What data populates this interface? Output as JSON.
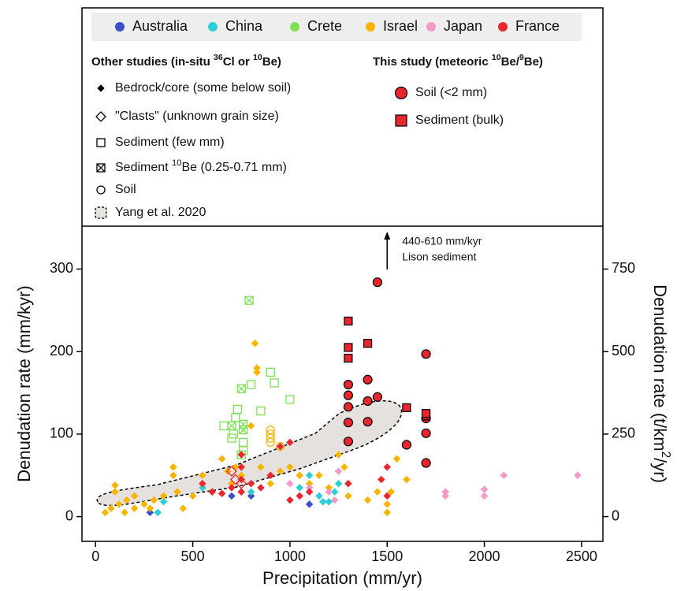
{
  "chart_data": {
    "type": "scatter",
    "xlabel": "Precipitation (mm/yr)",
    "ylabel": "Denudation rate (mm/kyr)",
    "y2label": [
      {
        "text": "Denudation rate (t/km"
      },
      {
        "text": "2",
        "sup": true
      },
      {
        "text": "/yr)"
      }
    ],
    "xlim": [
      -70,
      2610
    ],
    "xticks": [
      0,
      500,
      1000,
      1500,
      2000,
      2500
    ],
    "ylim": [
      -30,
      352
    ],
    "yticks": [
      0,
      100,
      200,
      300
    ],
    "y2lim": [
      -75,
      880
    ],
    "y2ticks": [
      0,
      250,
      500,
      750
    ],
    "annotation": {
      "x": 1500,
      "lines": [
        "440-610 mm/kyr",
        "Lison sediment"
      ]
    },
    "other_studies_title": [
      {
        "text": "Other studies (in-situ "
      },
      {
        "text": "36",
        "sup": true
      },
      {
        "text": "Cl or "
      },
      {
        "text": "10",
        "sup": true
      },
      {
        "text": "Be)"
      }
    ],
    "this_study_title": [
      {
        "text": "This study (meteoric "
      },
      {
        "text": "10",
        "sup": true
      },
      {
        "text": "Be/"
      },
      {
        "text": "9",
        "sup": true
      },
      {
        "text": "Be)"
      }
    ],
    "legend_items": [
      {
        "marker": "diamond",
        "label": [
          {
            "text": "Bedrock/core (some below soil)"
          }
        ]
      },
      {
        "marker": "diamond-open",
        "label": [
          {
            "text": "\"Clasts\" (unknown grain size)"
          }
        ]
      },
      {
        "marker": "square-open",
        "label": [
          {
            "text": "Sediment (few mm)"
          }
        ]
      },
      {
        "marker": "square-crossed",
        "label": [
          {
            "text": "Sediment "
          },
          {
            "text": "10",
            "sup": true
          },
          {
            "text": "Be (0.25-0.71 mm)"
          }
        ]
      },
      {
        "marker": "circle-open",
        "label": [
          {
            "text": "Soil"
          }
        ]
      },
      {
        "marker": "region",
        "label": [
          {
            "text": "Yang et al. 2020"
          }
        ]
      }
    ],
    "this_study_items": [
      {
        "marker": "circle-big",
        "color": "#e8262e",
        "label": "Soil (<2 mm)"
      },
      {
        "marker": "square-big",
        "color": "#e8262e",
        "label": "Sediment (bulk)"
      }
    ],
    "series": [
      {
        "name": "Australia",
        "color": "#3b4fcb",
        "groups": [
          {
            "marker": "diamond",
            "x": [
              280,
              700,
              750,
              800,
              1100
            ],
            "y": [
              5,
              25,
              30,
              25,
              15
            ]
          }
        ]
      },
      {
        "name": "China",
        "color": "#2ccfd8",
        "groups": [
          {
            "marker": "diamond",
            "x": [
              320,
              350,
              550,
              800,
              1050,
              1100,
              1150,
              1170,
              1200,
              1230,
              1250
            ],
            "y": [
              5,
              18,
              35,
              30,
              35,
              50,
              25,
              18,
              18,
              30,
              40
            ]
          }
        ]
      },
      {
        "name": "Crete",
        "color": "#7de052",
        "groups": [
          {
            "marker": "square-open",
            "x": [
              660,
              700,
              710,
              720,
              730,
              750,
              760,
              760,
              800,
              850,
              900,
              920,
              1000
            ],
            "y": [
              110,
              95,
              100,
              120,
              130,
              75,
              80,
              90,
              160,
              128,
              175,
              162,
              142
            ]
          },
          {
            "marker": "square-crossed",
            "x": [
              700,
              750,
              760,
              760,
              790
            ],
            "y": [
              110,
              155,
              105,
              112,
              262
            ]
          }
        ]
      },
      {
        "name": "Israel",
        "color": "#f7b500",
        "groups": [
          {
            "marker": "diamond",
            "x": [
              50,
              80,
              100,
              100,
              120,
              150,
              160,
              200,
              200,
              250,
              280,
              300,
              350,
              400,
              400,
              420,
              450,
              500,
              550,
              600,
              650,
              680,
              700,
              720,
              750,
              800,
              820,
              830,
              830,
              850,
              900,
              950,
              1000,
              1050,
              1100,
              1150,
              1200,
              1250,
              1280,
              1300,
              1400,
              1450,
              1500,
              1500,
              1520,
              1550,
              1600
            ],
            "y": [
              5,
              10,
              30,
              38,
              15,
              5,
              20,
              10,
              25,
              15,
              10,
              20,
              25,
              60,
              50,
              30,
              10,
              25,
              50,
              30,
              70,
              55,
              40,
              60,
              50,
              110,
              210,
              180,
              175,
              60,
              40,
              55,
              60,
              50,
              40,
              50,
              35,
              75,
              60,
              25,
              20,
              30,
              5,
              15,
              30,
              70,
              45
            ]
          },
          {
            "marker": "circle-open",
            "x": [
              900,
              900,
              900,
              900,
              950
            ],
            "y": [
              90,
              95,
              100,
              105,
              85
            ]
          }
        ]
      },
      {
        "name": "Japan",
        "color": "#f29ac8",
        "groups": [
          {
            "marker": "diamond",
            "x": [
              1000,
              1100,
              1200,
              1230,
              1250,
              1800,
              1800,
              2000,
              2000,
              2100,
              2480
            ],
            "y": [
              40,
              35,
              30,
              20,
              55,
              25,
              30,
              25,
              33,
              50,
              50
            ]
          }
        ]
      },
      {
        "name": "France",
        "color": "#e8262e",
        "groups": [
          {
            "marker": "diamond",
            "x": [
              550,
              600,
              650,
              700,
              750,
              750,
              750,
              750,
              800,
              850,
              900,
              950,
              1000,
              1000,
              1050,
              1100,
              1300,
              1470,
              1500,
              1500
            ],
            "y": [
              40,
              30,
              28,
              35,
              75,
              60,
              45,
              30,
              40,
              35,
              50,
              85,
              90,
              20,
              25,
              30,
              40,
              45,
              25,
              60
            ]
          },
          {
            "marker": "diamond-open",
            "x": [
              700,
              720,
              750
            ],
            "y": [
              55,
              45,
              40
            ]
          },
          {
            "marker": "circle-big",
            "x": [
              1300,
              1300,
              1300,
              1300,
              1300,
              1400,
              1400,
              1400,
              1450,
              1450,
              1600,
              1700,
              1700,
              1700,
              1700
            ],
            "y": [
              91,
              114,
              133,
              147,
              160,
              115,
              140,
              166,
              145,
              284,
              87,
              65,
              101,
              119,
              197
            ]
          },
          {
            "marker": "square-big",
            "x": [
              1300,
              1300,
              1300,
              1400,
              1600,
              1700,
              1700
            ],
            "y": [
              192,
              205,
              237,
              210,
              132,
              122,
              125
            ]
          }
        ]
      }
    ]
  }
}
